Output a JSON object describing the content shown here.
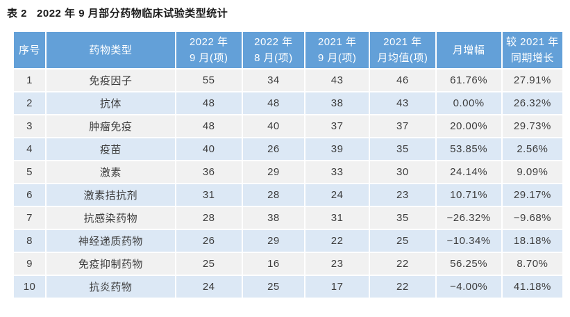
{
  "title": "表 2   2022 年 9 月部分药物临床试验类型统计",
  "colors": {
    "header_bg": "#63a0d8",
    "header_text": "#ffffff",
    "row_odd_bg": "#f1f1f1",
    "row_even_bg": "#dce8f5",
    "body_text": "#3d3d3d",
    "title_text": "#1a1a1a"
  },
  "table": {
    "headers": [
      "序号",
      "药物类型",
      "2022 年\n9 月(项)",
      "2022 年\n8 月(项)",
      "2021 年\n9 月(项)",
      "2021 年\n月均值(项)",
      "月增幅",
      "较 2021 年\n同期增长"
    ],
    "rows": [
      [
        "1",
        "免疫因子",
        "55",
        "34",
        "43",
        "46",
        "61.76%",
        "27.91%"
      ],
      [
        "2",
        "抗体",
        "48",
        "48",
        "38",
        "43",
        "0.00%",
        "26.32%"
      ],
      [
        "3",
        "肿瘤免疫",
        "48",
        "40",
        "37",
        "37",
        "20.00%",
        "29.73%"
      ],
      [
        "4",
        "疫苗",
        "40",
        "26",
        "39",
        "35",
        "53.85%",
        "2.56%"
      ],
      [
        "5",
        "激素",
        "36",
        "29",
        "33",
        "30",
        "24.14%",
        "9.09%"
      ],
      [
        "6",
        "激素拮抗剂",
        "31",
        "28",
        "24",
        "23",
        "10.71%",
        "29.17%"
      ],
      [
        "7",
        "抗感染药物",
        "28",
        "38",
        "31",
        "35",
        "−26.32%",
        "−9.68%"
      ],
      [
        "8",
        "神经递质药物",
        "26",
        "29",
        "22",
        "25",
        "−10.34%",
        "18.18%"
      ],
      [
        "9",
        "免疫抑制药物",
        "25",
        "16",
        "23",
        "22",
        "56.25%",
        "8.70%"
      ],
      [
        "10",
        "抗炎药物",
        "24",
        "25",
        "17",
        "22",
        "−4.00%",
        "41.18%"
      ]
    ]
  }
}
